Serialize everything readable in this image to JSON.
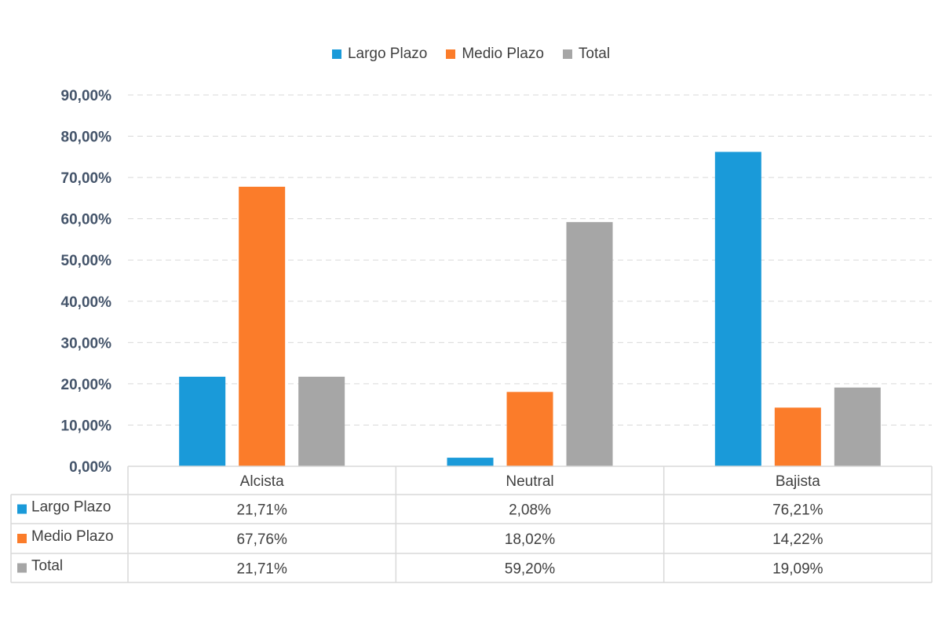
{
  "chart_data": {
    "type": "bar",
    "categories": [
      "Alcista",
      "Neutral",
      "Bajista"
    ],
    "series": [
      {
        "name": "Largo Plazo",
        "values": [
          21.71,
          2.08,
          76.21
        ],
        "labels": [
          "21,71%",
          "2,08%",
          "76,21%"
        ],
        "color": "#1a9ad9"
      },
      {
        "name": "Medio Plazo",
        "values": [
          67.76,
          18.02,
          14.22
        ],
        "labels": [
          "67,76%",
          "18,02%",
          "14,22%"
        ],
        "color": "#fb7c2a"
      },
      {
        "name": "Total",
        "values": [
          21.71,
          59.2,
          19.09
        ],
        "labels": [
          "21,71%",
          "59,20%",
          "19,09%"
        ],
        "color": "#a6a6a6"
      }
    ],
    "ylim": [
      0,
      90
    ],
    "yticks": [
      0,
      10,
      20,
      30,
      40,
      50,
      60,
      70,
      80,
      90
    ],
    "ytick_labels": [
      "0,00%",
      "10,00%",
      "20,00%",
      "30,00%",
      "40,00%",
      "50,00%",
      "60,00%",
      "70,00%",
      "80,00%",
      "90,00%"
    ],
    "grid": true,
    "legend": "top-center",
    "data_table": true,
    "title": "",
    "xlabel": "",
    "ylabel": ""
  }
}
